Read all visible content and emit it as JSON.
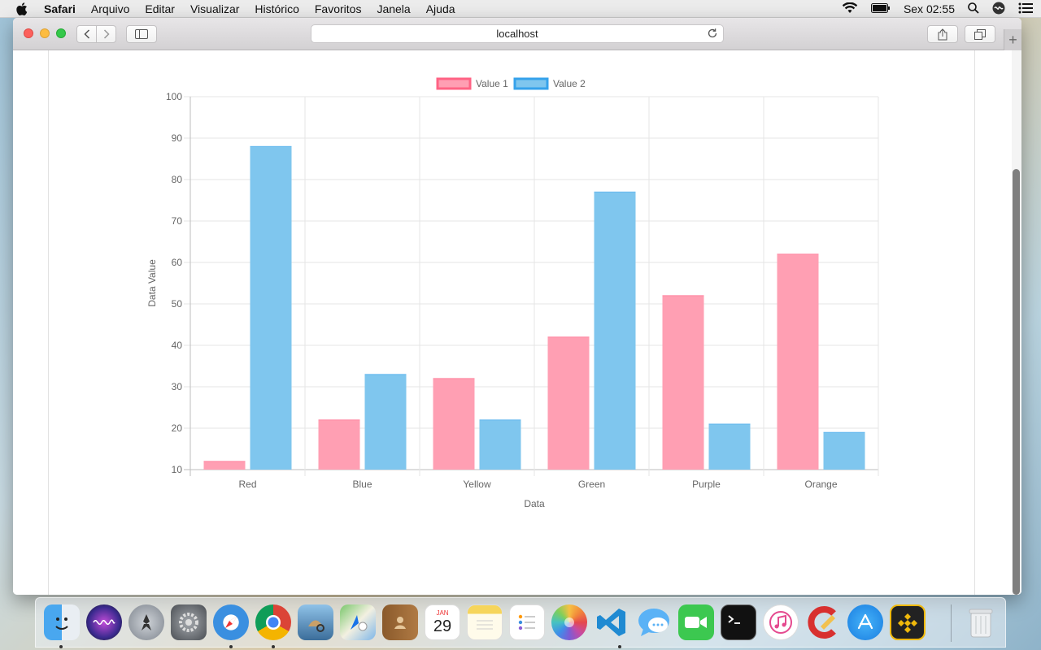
{
  "menubar": {
    "app_name": "Safari",
    "items": [
      "Arquivo",
      "Editar",
      "Visualizar",
      "Histórico",
      "Favoritos",
      "Janela",
      "Ajuda"
    ],
    "clock": "Sex 02:55"
  },
  "browser": {
    "url": "localhost"
  },
  "chart_data": {
    "type": "bar",
    "categories": [
      "Red",
      "Blue",
      "Yellow",
      "Green",
      "Purple",
      "Orange"
    ],
    "series": [
      {
        "name": "Value 1",
        "values": [
          12,
          22,
          32,
          42,
          52,
          62
        ],
        "color": "#ff9fb3",
        "border": "#ff6384"
      },
      {
        "name": "Value 2",
        "values": [
          88,
          33,
          22,
          77,
          21,
          19
        ],
        "color": "#7fc6ee",
        "border": "#36a2eb"
      }
    ],
    "xlabel": "Data",
    "ylabel": "Data Value",
    "ylim": [
      10,
      100
    ],
    "yticks": [
      10,
      20,
      30,
      40,
      50,
      60,
      70,
      80,
      90,
      100
    ],
    "grid": true,
    "legend": "top-center"
  },
  "dock": {
    "calendar_month": "JAN",
    "calendar_day": "29",
    "icons": [
      "finder-icon",
      "siri-icon",
      "launchpad-icon",
      "system-preferences-icon",
      "safari-icon",
      "chrome-icon",
      "preview-icon",
      "maps-icon",
      "contacts-icon",
      "calendar-icon",
      "notes-icon",
      "reminders-icon",
      "photos-icon",
      "vscode-icon",
      "messages-icon",
      "facetime-icon",
      "terminal-icon",
      "itunes-icon",
      "ccleaner-icon",
      "app-store-icon",
      "binance-icon",
      "trash-icon"
    ]
  }
}
